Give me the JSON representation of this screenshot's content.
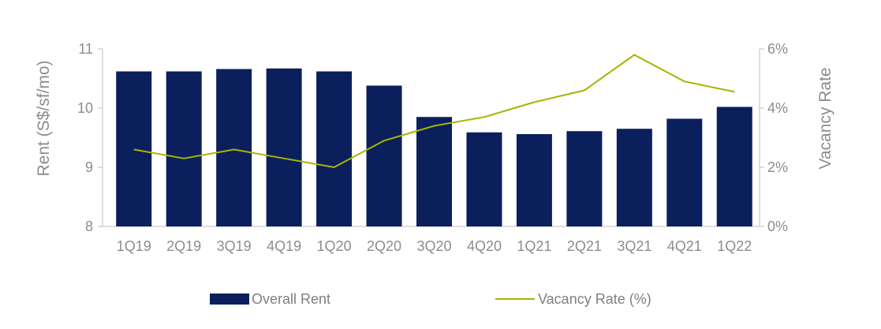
{
  "chart_data": {
    "type": "bar",
    "categories": [
      "1Q19",
      "2Q19",
      "3Q19",
      "4Q19",
      "1Q20",
      "2Q20",
      "3Q20",
      "4Q20",
      "1Q21",
      "2Q21",
      "3Q21",
      "4Q21",
      "1Q22"
    ],
    "series": [
      {
        "name": "Overall Rent",
        "type": "bar",
        "axis": "left",
        "values": [
          10.62,
          10.62,
          10.66,
          10.67,
          10.62,
          10.38,
          9.85,
          9.59,
          9.56,
          9.61,
          9.65,
          9.82,
          10.02
        ]
      },
      {
        "name": "Vacancy Rate (%)",
        "type": "line",
        "axis": "right",
        "values": [
          2.6,
          2.3,
          2.6,
          2.3,
          2.0,
          2.9,
          3.4,
          3.7,
          4.2,
          4.6,
          5.8,
          4.9,
          4.55
        ]
      }
    ],
    "ylabel": "Rent (S$/sf/mo)",
    "y2label": "Vacancy Rate",
    "ylim": [
      8,
      11
    ],
    "y2lim": [
      0,
      6
    ],
    "yticks": [
      "8",
      "9",
      "10",
      "11"
    ],
    "y2ticks": [
      "0%",
      "2%",
      "4%",
      "6%"
    ],
    "grid": false,
    "legend_position": "bottom",
    "colors": {
      "bar": "#0a1f5c",
      "line": "#a8b400",
      "axis": "#bfbfbf",
      "text": "#8c8c8c"
    }
  }
}
